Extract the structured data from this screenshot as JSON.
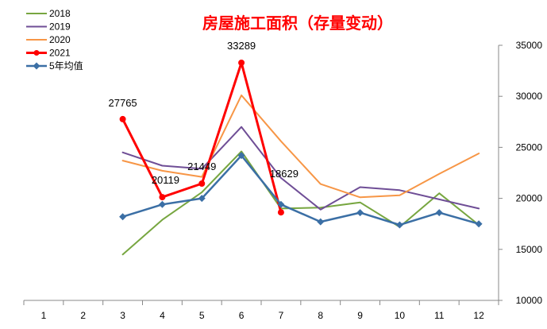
{
  "chart_data": {
    "type": "line",
    "title": "房屋施工面积（存量变动）",
    "categories": [
      "1",
      "2",
      "3",
      "4",
      "5",
      "6",
      "7",
      "8",
      "9",
      "10",
      "11",
      "12"
    ],
    "ylim": [
      10000,
      35000
    ],
    "yticks": [
      "10000",
      "15000",
      "20000",
      "25000",
      "30000",
      "35000"
    ],
    "y_axis_side": "right",
    "grid": false,
    "legend_position": "top-left",
    "series": [
      {
        "name": "2018",
        "color": "#77a640",
        "marker": "none",
        "width": 2,
        "values": [
          null,
          null,
          14500,
          17900,
          20600,
          24600,
          19000,
          19100,
          19600,
          17200,
          20500,
          17400
        ]
      },
      {
        "name": "2019",
        "color": "#6f4e96",
        "marker": "none",
        "width": 2,
        "values": [
          null,
          null,
          24500,
          23200,
          22900,
          27000,
          22000,
          18900,
          21100,
          20800,
          19900,
          19000
        ]
      },
      {
        "name": "2020",
        "color": "#f79646",
        "marker": "none",
        "width": 2,
        "values": [
          null,
          null,
          23700,
          22700,
          22100,
          30100,
          25600,
          21400,
          20100,
          20300,
          22400,
          24400
        ]
      },
      {
        "name": "2021",
        "color": "#ff0000",
        "marker": "circle",
        "width": 3,
        "values": [
          null,
          null,
          27765,
          20119,
          21449,
          33289,
          18629,
          null,
          null,
          null,
          null,
          null
        ],
        "labels": [
          "",
          "",
          "27765",
          "20119",
          "21449",
          "33289",
          "18629",
          "",
          "",
          "",
          "",
          ""
        ]
      },
      {
        "name": "5年均值",
        "color": "#3b6fa5",
        "marker": "diamond",
        "width": 2.5,
        "values": [
          null,
          null,
          18200,
          19400,
          20000,
          24200,
          19400,
          17700,
          18600,
          17400,
          18600,
          17500
        ]
      }
    ]
  }
}
